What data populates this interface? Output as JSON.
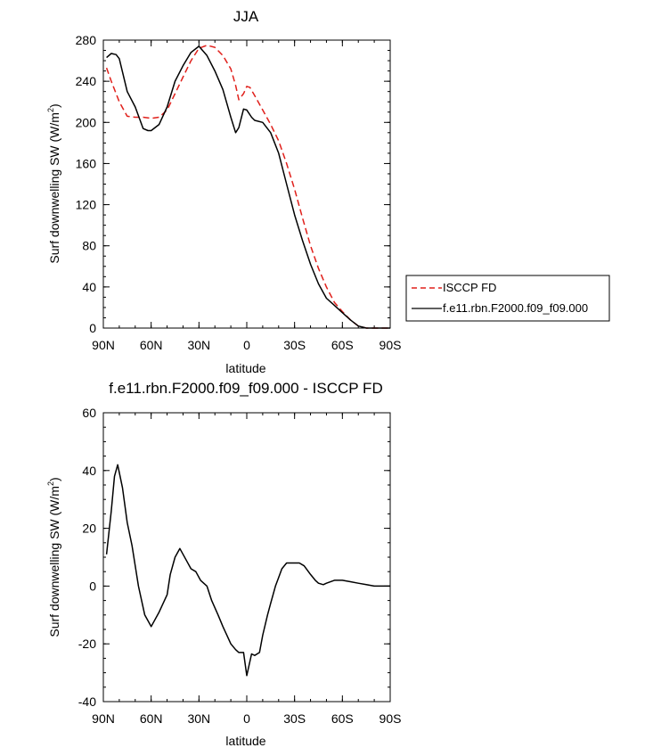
{
  "chart_data": [
    {
      "type": "line",
      "title": "JJA",
      "xlabel": "latitude",
      "ylabel": "Surf downwelling SW (W/m",
      "ylabel_sup": "2",
      "ylabel_end": ")",
      "xlim": [
        90,
        -90
      ],
      "ylim": [
        0,
        280
      ],
      "x_ticks": [
        90,
        60,
        30,
        0,
        -30,
        -60,
        -90
      ],
      "x_tick_labels": [
        "90N",
        "60N",
        "30N",
        "0",
        "30S",
        "60S",
        "90S"
      ],
      "y_ticks": [
        0,
        40,
        80,
        120,
        160,
        200,
        240,
        280
      ],
      "y_tick_labels": [
        "0",
        "40",
        "80",
        "120",
        "160",
        "200",
        "240",
        "280"
      ],
      "legend_placement": "right",
      "series": [
        {
          "name": "ISCCP FD",
          "color": "#e0201b",
          "dash": "dashed",
          "x": [
            88,
            85,
            80,
            75,
            70,
            65,
            60,
            55,
            50,
            45,
            40,
            35,
            30,
            25,
            20,
            15,
            10,
            7,
            5,
            2,
            0,
            -2,
            -5,
            -10,
            -15,
            -20,
            -25,
            -30,
            -35,
            -40,
            -45,
            -50,
            -55,
            -60,
            -65,
            -70,
            -75,
            -80,
            -85,
            -90
          ],
          "y": [
            253,
            240,
            220,
            206,
            205,
            205,
            204,
            205,
            212,
            228,
            244,
            260,
            272,
            275,
            273,
            265,
            252,
            236,
            222,
            228,
            235,
            234,
            226,
            212,
            198,
            182,
            160,
            135,
            107,
            80,
            58,
            40,
            25,
            16,
            8,
            2,
            0,
            0,
            0,
            0
          ]
        },
        {
          "name": "f.e11.rbn.F2000.f09_f09.000",
          "color": "#000000",
          "dash": "solid",
          "x": [
            88,
            85,
            82,
            80,
            75,
            70,
            65,
            62,
            60,
            55,
            50,
            45,
            40,
            35,
            30,
            25,
            20,
            15,
            10,
            7,
            5,
            2,
            0,
            -3,
            -5,
            -10,
            -15,
            -20,
            -25,
            -30,
            -35,
            -40,
            -45,
            -50,
            -55,
            -60,
            -65,
            -70,
            -75,
            -80,
            -85,
            -90
          ],
          "y": [
            263,
            267,
            266,
            262,
            230,
            215,
            194,
            192,
            192,
            198,
            215,
            240,
            255,
            268,
            274,
            265,
            250,
            232,
            205,
            190,
            195,
            213,
            212,
            205,
            202,
            200,
            190,
            170,
            140,
            110,
            85,
            62,
            43,
            29,
            22,
            15,
            8,
            2,
            0,
            0,
            0,
            0
          ]
        }
      ]
    },
    {
      "type": "line",
      "title": "f.e11.rbn.F2000.f09_f09.000 - ISCCP FD",
      "xlabel": "latitude",
      "ylabel": "Surf downwelling SW (W/m",
      "ylabel_sup": "2",
      "ylabel_end": ")",
      "xlim": [
        90,
        -90
      ],
      "ylim": [
        -40,
        60
      ],
      "x_ticks": [
        90,
        60,
        30,
        0,
        -30,
        -60,
        -90
      ],
      "x_tick_labels": [
        "90N",
        "60N",
        "30N",
        "0",
        "30S",
        "60S",
        "90S"
      ],
      "y_ticks": [
        -40,
        -20,
        0,
        20,
        40,
        60
      ],
      "y_tick_labels": [
        "-40",
        "-20",
        "0",
        "20",
        "40",
        "60"
      ],
      "series": [
        {
          "color": "#000000",
          "dash": "solid",
          "x": [
            88,
            85,
            83,
            81,
            78,
            75,
            72,
            68,
            64,
            60,
            55,
            50,
            48,
            45,
            42,
            38,
            35,
            32,
            29,
            25,
            22,
            18,
            15,
            10,
            7,
            5,
            2,
            0,
            -3,
            -5,
            -8,
            -10,
            -13,
            -15,
            -18,
            -20,
            -22,
            -25,
            -28,
            -30,
            -33,
            -36,
            -40,
            -43,
            -45,
            -48,
            -50,
            -55,
            -60,
            -65,
            -70,
            -75,
            -80,
            -85,
            -90
          ],
          "y": [
            11,
            26,
            38,
            42,
            34,
            22,
            14,
            0,
            -10,
            -14,
            -9,
            -3,
            4,
            10,
            13,
            9,
            6,
            5,
            2,
            0,
            -5,
            -10,
            -14,
            -20,
            -22,
            -23,
            -23,
            -31,
            -23.5,
            -24,
            -23,
            -17,
            -10,
            -6,
            0,
            3,
            6,
            8,
            8,
            8,
            8,
            7,
            4,
            2,
            1,
            0.5,
            1,
            2,
            2,
            1.5,
            1,
            0.5,
            0,
            0,
            0
          ]
        }
      ]
    }
  ]
}
